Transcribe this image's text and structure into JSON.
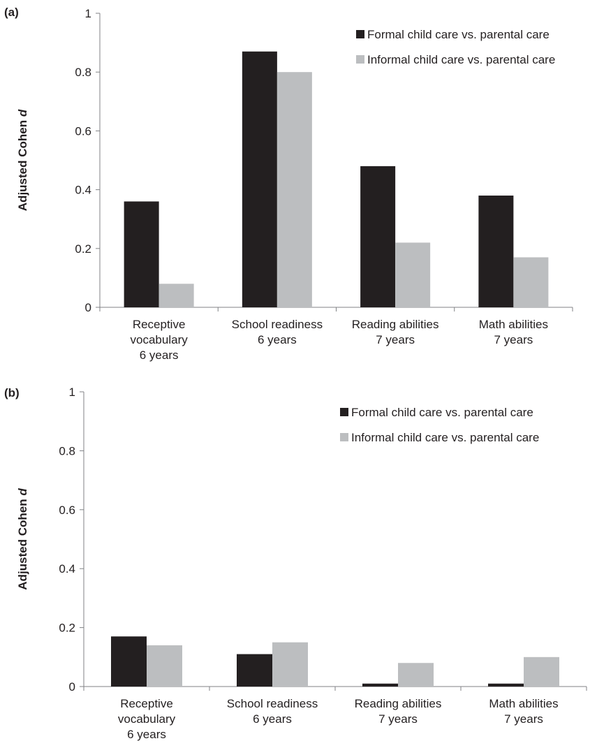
{
  "chart_data": [
    {
      "type": "bar",
      "panel_label": "(a)",
      "ylabel": "Adjusted Cohen",
      "ylabel_italic": "d",
      "ylim": [
        0,
        1
      ],
      "yticks": [
        "0",
        "0.2",
        "0.4",
        "0.6",
        "0.8",
        "1"
      ],
      "categories": [
        [
          "Receptive",
          "vocabulary",
          "6 years"
        ],
        [
          "School readiness",
          "6 years"
        ],
        [
          "Reading abilities",
          "7 years"
        ],
        [
          "Math abilities",
          "7 years"
        ]
      ],
      "series": [
        {
          "name": "Formal child care vs. parental care",
          "color": "#231f20",
          "values": [
            0.36,
            0.87,
            0.48,
            0.38
          ]
        },
        {
          "name": "Informal child care vs. parental care",
          "color": "#bcbec0",
          "values": [
            0.08,
            0.8,
            0.22,
            0.17
          ]
        }
      ],
      "legend": "top-right"
    },
    {
      "type": "bar",
      "panel_label": "(b)",
      "ylabel": "Adjusted Cohen",
      "ylabel_italic": "d",
      "ylim": [
        0,
        1
      ],
      "yticks": [
        "0",
        "0.2",
        "0.4",
        "0.6",
        "0.8",
        "1"
      ],
      "categories": [
        [
          "Receptive",
          "vocabulary",
          "6 years"
        ],
        [
          "School readiness",
          "6 years"
        ],
        [
          "Reading abilities",
          "7 years"
        ],
        [
          "Math abilities",
          "7 years"
        ]
      ],
      "series": [
        {
          "name": "Formal child care vs. parental care",
          "color": "#231f20",
          "values": [
            0.17,
            0.11,
            0.01,
            0.01
          ]
        },
        {
          "name": "Informal child care vs. parental care",
          "color": "#bcbec0",
          "values": [
            0.14,
            0.15,
            0.08,
            0.1
          ]
        }
      ],
      "legend": "top-right"
    }
  ]
}
